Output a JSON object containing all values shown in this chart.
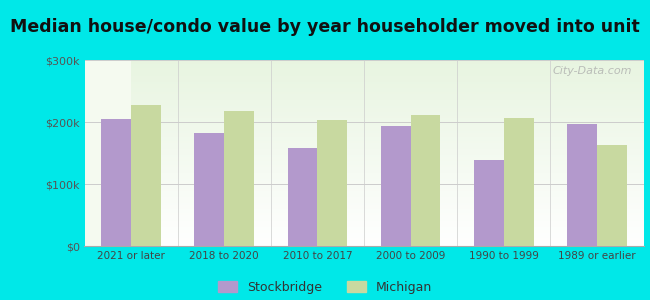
{
  "categories": [
    "2021 or later",
    "2018 to 2020",
    "2010 to 2017",
    "2000 to 2009",
    "1990 to 1999",
    "1989 or earlier"
  ],
  "stockbridge_values": [
    205000,
    183000,
    158000,
    193000,
    138000,
    197000
  ],
  "michigan_values": [
    227000,
    218000,
    203000,
    212000,
    207000,
    163000
  ],
  "stockbridge_color": "#b399cc",
  "michigan_color": "#c8d9a0",
  "title": "Median house/condo value by year householder moved into unit",
  "title_fontsize": 12.5,
  "ylim": [
    0,
    300000
  ],
  "yticks": [
    0,
    100000,
    200000,
    300000
  ],
  "background_color": "#00e8e8",
  "legend_labels": [
    "Stockbridge",
    "Michigan"
  ],
  "bar_width": 0.32,
  "watermark_text": "City-Data.com"
}
